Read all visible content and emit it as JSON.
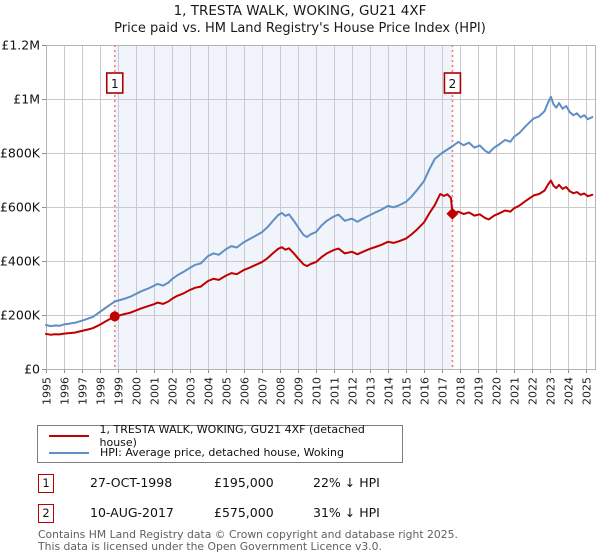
{
  "title": {
    "line1": "1, TRESTA WALK, WOKING, GU21 4XF",
    "line2": "Price paid vs. HM Land Registry's House Price Index (HPI)"
  },
  "legend": {
    "items": [
      {
        "label": "1, TRESTA WALK, WOKING, GU21 4XF (detached house)",
        "color": "#c00000"
      },
      {
        "label": "HPI: Average price, detached house, Woking",
        "color": "#5f8fc4"
      }
    ]
  },
  "transactions": [
    {
      "num": "1",
      "date": "27-OCT-1998",
      "price": "£195,000",
      "hpi": "22% ↓ HPI",
      "year": 1998.82,
      "value_k": 195,
      "marker": "circle"
    },
    {
      "num": "2",
      "date": "10-AUG-2017",
      "price": "£575,000",
      "hpi": "31% ↓ HPI",
      "year": 2017.58,
      "value_k": 575,
      "marker": "diamond"
    }
  ],
  "footer": {
    "line1": "Contains HM Land Registry data © Crown copyright and database right 2025.",
    "line2": "This data is licensed under the Open Government Licence v3.0."
  },
  "chart_data": {
    "type": "line",
    "title": "Price paid vs. HM Land Registry's House Price Index (HPI)",
    "unit": "GBP thousands",
    "grid": true,
    "x_axis": {
      "min": 1995,
      "max": 2025.5,
      "ticks": [
        1995,
        1996,
        1997,
        1998,
        1999,
        2000,
        2001,
        2002,
        2003,
        2004,
        2005,
        2006,
        2007,
        2008,
        2009,
        2010,
        2011,
        2012,
        2013,
        2014,
        2015,
        2016,
        2017,
        2018,
        2019,
        2020,
        2021,
        2022,
        2023,
        2024,
        2025
      ]
    },
    "y_axis": {
      "min": 0,
      "max": 1200,
      "ticks": [
        {
          "v": 0,
          "label": "£0"
        },
        {
          "v": 200,
          "label": "£200K"
        },
        {
          "v": 400,
          "label": "£400K"
        },
        {
          "v": 600,
          "label": "£600K"
        },
        {
          "v": 800,
          "label": "£800K"
        },
        {
          "v": 1000,
          "label": "£1M"
        },
        {
          "v": 1200,
          "label": "£1.2M"
        }
      ]
    },
    "shaded_region": {
      "from": 1998.82,
      "to": 2017.58,
      "color": "#f1f4fb"
    },
    "sale_line_color": "#ee8080",
    "series": [
      {
        "name": "HPI: Average price, detached house, Woking",
        "color": "#5f8fc4",
        "points": [
          [
            1995.0,
            163
          ],
          [
            1995.25,
            159
          ],
          [
            1995.5,
            161
          ],
          [
            1995.75,
            160
          ],
          [
            1996.0,
            165
          ],
          [
            1996.3,
            168
          ],
          [
            1996.6,
            171
          ],
          [
            1997.0,
            179
          ],
          [
            1997.3,
            186
          ],
          [
            1997.6,
            193
          ],
          [
            1998.0,
            212
          ],
          [
            1998.3,
            226
          ],
          [
            1998.6,
            240
          ],
          [
            1998.82,
            250
          ],
          [
            1999.1,
            255
          ],
          [
            1999.4,
            261
          ],
          [
            1999.7,
            268
          ],
          [
            2000.0,
            278
          ],
          [
            2000.3,
            288
          ],
          [
            2000.6,
            296
          ],
          [
            2001.0,
            308
          ],
          [
            2001.2,
            315
          ],
          [
            2001.5,
            309
          ],
          [
            2001.8,
            320
          ],
          [
            2002.0,
            333
          ],
          [
            2002.3,
            347
          ],
          [
            2002.6,
            358
          ],
          [
            2003.0,
            375
          ],
          [
            2003.3,
            386
          ],
          [
            2003.6,
            391
          ],
          [
            2004.0,
            418
          ],
          [
            2004.3,
            428
          ],
          [
            2004.6,
            423
          ],
          [
            2005.0,
            444
          ],
          [
            2005.3,
            455
          ],
          [
            2005.6,
            450
          ],
          [
            2006.0,
            470
          ],
          [
            2006.3,
            481
          ],
          [
            2006.6,
            492
          ],
          [
            2007.0,
            507
          ],
          [
            2007.3,
            525
          ],
          [
            2007.6,
            548
          ],
          [
            2007.9,
            570
          ],
          [
            2008.1,
            578
          ],
          [
            2008.3,
            567
          ],
          [
            2008.5,
            573
          ],
          [
            2008.8,
            546
          ],
          [
            2009.0,
            526
          ],
          [
            2009.3,
            497
          ],
          [
            2009.5,
            489
          ],
          [
            2009.7,
            499
          ],
          [
            2010.0,
            507
          ],
          [
            2010.3,
            531
          ],
          [
            2010.6,
            549
          ],
          [
            2011.0,
            565
          ],
          [
            2011.25,
            572
          ],
          [
            2011.6,
            549
          ],
          [
            2012.0,
            557
          ],
          [
            2012.3,
            545
          ],
          [
            2012.6,
            557
          ],
          [
            2013.0,
            570
          ],
          [
            2013.3,
            580
          ],
          [
            2013.6,
            589
          ],
          [
            2014.0,
            604
          ],
          [
            2014.3,
            599
          ],
          [
            2014.6,
            606
          ],
          [
            2015.0,
            619
          ],
          [
            2015.3,
            638
          ],
          [
            2015.6,
            662
          ],
          [
            2016.0,
            696
          ],
          [
            2016.3,
            740
          ],
          [
            2016.6,
            778
          ],
          [
            2017.0,
            800
          ],
          [
            2017.3,
            813
          ],
          [
            2017.6,
            826
          ],
          [
            2017.9,
            841
          ],
          [
            2018.2,
            829
          ],
          [
            2018.5,
            838
          ],
          [
            2018.8,
            820
          ],
          [
            2019.1,
            828
          ],
          [
            2019.4,
            808
          ],
          [
            2019.6,
            800
          ],
          [
            2019.9,
            820
          ],
          [
            2020.2,
            833
          ],
          [
            2020.5,
            848
          ],
          [
            2020.8,
            842
          ],
          [
            2021.0,
            860
          ],
          [
            2021.3,
            874
          ],
          [
            2021.6,
            896
          ],
          [
            2021.9,
            916
          ],
          [
            2022.1,
            928
          ],
          [
            2022.4,
            936
          ],
          [
            2022.7,
            955
          ],
          [
            2022.9,
            988
          ],
          [
            2023.05,
            1008
          ],
          [
            2023.2,
            980
          ],
          [
            2023.35,
            968
          ],
          [
            2023.5,
            985
          ],
          [
            2023.7,
            964
          ],
          [
            2023.9,
            974
          ],
          [
            2024.1,
            951
          ],
          [
            2024.3,
            940
          ],
          [
            2024.5,
            947
          ],
          [
            2024.7,
            932
          ],
          [
            2024.9,
            940
          ],
          [
            2025.1,
            925
          ],
          [
            2025.35,
            933
          ]
        ]
      },
      {
        "name": "1, TRESTA WALK, WOKING, GU21 4XF (detached house)",
        "color": "#c00000",
        "points": [
          [
            1995.0,
            130
          ],
          [
            1995.25,
            127
          ],
          [
            1995.5,
            129
          ],
          [
            1995.75,
            128
          ],
          [
            1996.0,
            131
          ],
          [
            1996.3,
            133
          ],
          [
            1996.6,
            135
          ],
          [
            1997.0,
            141
          ],
          [
            1997.3,
            146
          ],
          [
            1997.6,
            151
          ],
          [
            1998.0,
            164
          ],
          [
            1998.3,
            176
          ],
          [
            1998.6,
            187
          ],
          [
            1998.82,
            195
          ],
          [
            1999.1,
            199
          ],
          [
            1999.4,
            204
          ],
          [
            1999.7,
            209
          ],
          [
            2000.0,
            217
          ],
          [
            2000.3,
            225
          ],
          [
            2000.6,
            231
          ],
          [
            2001.0,
            240
          ],
          [
            2001.2,
            246
          ],
          [
            2001.5,
            241
          ],
          [
            2001.8,
            250
          ],
          [
            2002.0,
            260
          ],
          [
            2002.3,
            271
          ],
          [
            2002.6,
            279
          ],
          [
            2003.0,
            293
          ],
          [
            2003.3,
            301
          ],
          [
            2003.6,
            305
          ],
          [
            2004.0,
            326
          ],
          [
            2004.3,
            334
          ],
          [
            2004.6,
            330
          ],
          [
            2005.0,
            346
          ],
          [
            2005.3,
            355
          ],
          [
            2005.6,
            351
          ],
          [
            2006.0,
            367
          ],
          [
            2006.3,
            375
          ],
          [
            2006.6,
            384
          ],
          [
            2007.0,
            396
          ],
          [
            2007.3,
            410
          ],
          [
            2007.6,
            428
          ],
          [
            2007.9,
            445
          ],
          [
            2008.1,
            451
          ],
          [
            2008.3,
            442
          ],
          [
            2008.5,
            447
          ],
          [
            2008.8,
            426
          ],
          [
            2009.0,
            410
          ],
          [
            2009.3,
            388
          ],
          [
            2009.5,
            381
          ],
          [
            2009.7,
            389
          ],
          [
            2010.0,
            396
          ],
          [
            2010.3,
            414
          ],
          [
            2010.6,
            428
          ],
          [
            2011.0,
            441
          ],
          [
            2011.25,
            446
          ],
          [
            2011.6,
            428
          ],
          [
            2012.0,
            434
          ],
          [
            2012.3,
            425
          ],
          [
            2012.6,
            434
          ],
          [
            2013.0,
            445
          ],
          [
            2013.3,
            452
          ],
          [
            2013.6,
            459
          ],
          [
            2014.0,
            471
          ],
          [
            2014.3,
            467
          ],
          [
            2014.6,
            473
          ],
          [
            2015.0,
            483
          ],
          [
            2015.3,
            498
          ],
          [
            2015.6,
            516
          ],
          [
            2016.0,
            543
          ],
          [
            2016.3,
            577
          ],
          [
            2016.6,
            607
          ],
          [
            2016.9,
            648
          ],
          [
            2017.1,
            641
          ],
          [
            2017.3,
            647
          ],
          [
            2017.5,
            633
          ],
          [
            2017.58,
            575
          ],
          [
            2017.9,
            583
          ],
          [
            2018.2,
            574
          ],
          [
            2018.5,
            580
          ],
          [
            2018.8,
            568
          ],
          [
            2019.1,
            573
          ],
          [
            2019.4,
            559
          ],
          [
            2019.6,
            554
          ],
          [
            2019.9,
            568
          ],
          [
            2020.2,
            577
          ],
          [
            2020.5,
            587
          ],
          [
            2020.8,
            583
          ],
          [
            2021.0,
            595
          ],
          [
            2021.3,
            605
          ],
          [
            2021.6,
            620
          ],
          [
            2021.9,
            634
          ],
          [
            2022.1,
            643
          ],
          [
            2022.4,
            648
          ],
          [
            2022.7,
            661
          ],
          [
            2022.9,
            684
          ],
          [
            2023.05,
            698
          ],
          [
            2023.2,
            678
          ],
          [
            2023.35,
            670
          ],
          [
            2023.5,
            682
          ],
          [
            2023.7,
            667
          ],
          [
            2023.9,
            674
          ],
          [
            2024.1,
            658
          ],
          [
            2024.3,
            651
          ],
          [
            2024.5,
            655
          ],
          [
            2024.7,
            645
          ],
          [
            2024.9,
            650
          ],
          [
            2025.1,
            640
          ],
          [
            2025.35,
            645
          ]
        ]
      }
    ]
  }
}
